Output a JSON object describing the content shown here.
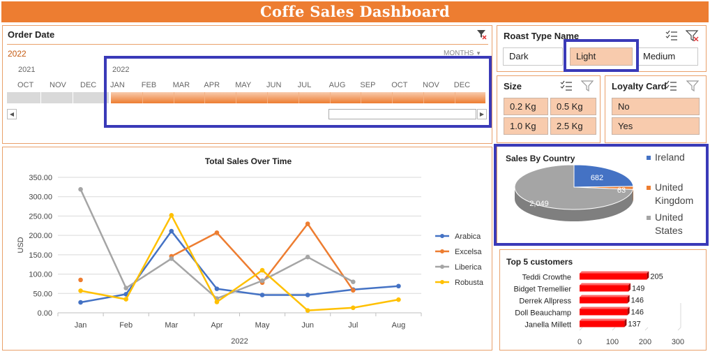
{
  "dashboard_title": "Coffe Sales Dashboard",
  "colors": {
    "accent": "#ED7D31",
    "selected_tile": "#F8CBAD",
    "highlight": "#3A3AB8",
    "bar_red": "#FF0000",
    "arabica": "#4472C4",
    "excelsa": "#ED7D31",
    "liberica": "#A5A5A5",
    "robusta": "#FFC000"
  },
  "timeline": {
    "title": "Order Date",
    "selected_label": "2022",
    "level": "MONTHS",
    "year_2021": "2021",
    "year_2022": "2022",
    "months_2021": [
      "OCT",
      "NOV",
      "DEC"
    ],
    "months_2022": [
      "JAN",
      "FEB",
      "MAR",
      "APR",
      "MAY",
      "JUN",
      "JUL",
      "AUG",
      "SEP",
      "OCT",
      "NOV",
      "DEC"
    ]
  },
  "roast_slicer": {
    "title": "Roast Type Name",
    "items": [
      {
        "label": "Dark",
        "selected": false
      },
      {
        "label": "Light",
        "selected": true
      },
      {
        "label": "Medium",
        "selected": false
      }
    ]
  },
  "size_slicer": {
    "title": "Size",
    "items": [
      {
        "label": "0.2 Kg",
        "selected": true
      },
      {
        "label": "0.5 Kg",
        "selected": true
      },
      {
        "label": "1.0 Kg",
        "selected": true
      },
      {
        "label": "2.5 Kg",
        "selected": true
      }
    ]
  },
  "loyalty_slicer": {
    "title": "Loyalty Card",
    "items": [
      {
        "label": "No",
        "selected": true
      },
      {
        "label": "Yes",
        "selected": true
      }
    ]
  },
  "chart_data": [
    {
      "type": "line",
      "title": "Total Sales Over Time",
      "xlabel": "2022",
      "ylabel": "USD",
      "categories": [
        "Jan",
        "Feb",
        "Mar",
        "Apr",
        "May",
        "Jun",
        "Jul",
        "Aug"
      ],
      "ylim": [
        0,
        350
      ],
      "yticks": [
        "0.00",
        "50.00",
        "100.00",
        "150.00",
        "200.00",
        "250.00",
        "300.00",
        "350.00"
      ],
      "legend": "right",
      "grid": true,
      "series": [
        {
          "name": "Arabica",
          "values": [
            27,
            48,
            211,
            62,
            46,
            46,
            60,
            69
          ]
        },
        {
          "name": "Excelsa",
          "values": [
            85,
            null,
            146,
            207,
            78,
            230,
            58,
            null
          ]
        },
        {
          "name": "Liberica",
          "values": [
            319,
            64,
            140,
            37,
            83,
            144,
            80,
            null
          ]
        },
        {
          "name": "Robusta",
          "values": [
            57,
            35,
            252,
            28,
            110,
            6,
            13,
            34
          ]
        }
      ]
    },
    {
      "type": "pie",
      "title": "Sales By Country",
      "legend": "right",
      "categories": [
        "Ireland",
        "United Kingdom",
        "United States"
      ],
      "values": [
        682,
        63,
        2049
      ],
      "labels": [
        "682",
        "63",
        "2,049"
      ]
    },
    {
      "type": "bar",
      "title": "Top 5 customers",
      "orientation": "horizontal",
      "categories": [
        "Teddi Crowthe",
        "Bidget Tremellier",
        "Derrek Allpress",
        "Doll Beauchamp",
        "Janella Millett"
      ],
      "values": [
        205,
        149,
        146,
        146,
        137
      ],
      "xlim": [
        0,
        300
      ],
      "xticks": [
        "0",
        "100",
        "200",
        "300"
      ]
    }
  ]
}
